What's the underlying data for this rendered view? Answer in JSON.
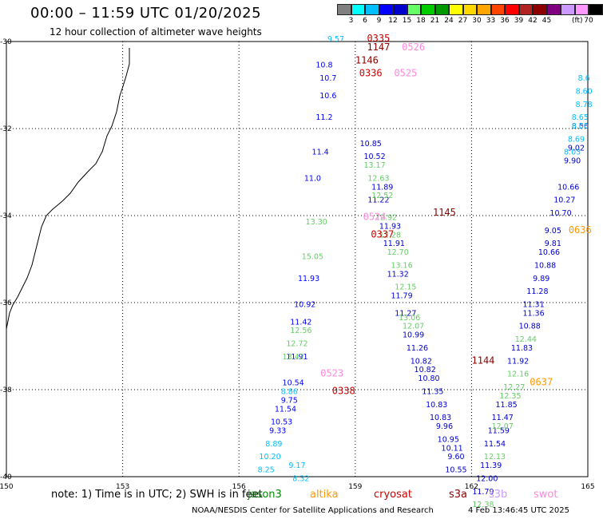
{
  "title": "00:00  –  11:59 UTC 01/20/2025",
  "subtitle": "12 hour collection of altimeter wave heights",
  "legend": {
    "colors": [
      "#808080",
      "#00ffff",
      "#00bfff",
      "#0000ff",
      "#0000cd",
      "#66ff66",
      "#00cc00",
      "#009900",
      "#ffff00",
      "#ffd700",
      "#ffa500",
      "#ff4500",
      "#ff0000",
      "#b22222",
      "#8b0000",
      "#800080",
      "#cc99ff",
      "#ff99ff",
      "#000000"
    ],
    "labels": [
      "3",
      "6",
      "9",
      "12",
      "15",
      "18",
      "21",
      "24",
      "27",
      "30",
      "33",
      "36",
      "39",
      "42",
      "45",
      "70"
    ],
    "unit": "(ft)"
  },
  "axes": {
    "x_ticks": [
      "150",
      "153",
      "156",
      "159",
      "162",
      "165"
    ],
    "y_ticks": [
      "-30",
      "-32",
      "-34",
      "-36",
      "-38",
      "-40"
    ],
    "x_values": [
      150,
      153,
      156,
      159,
      162,
      165
    ],
    "y_values": [
      -30,
      -32,
      -34,
      -36,
      -38,
      -40
    ]
  },
  "tracks": [
    {
      "satellite": "jason3",
      "color": "#0000ff",
      "points": [
        {
          "lon": 158.2,
          "lat": -30.6,
          "v": "10.8"
        },
        {
          "lon": 158.3,
          "lat": -30.9,
          "v": "10.7"
        },
        {
          "lon": 158.3,
          "lat": -31.3,
          "v": "10.6"
        },
        {
          "lon": 158.2,
          "lat": -31.8,
          "v": "11.2"
        },
        {
          "lon": 158.1,
          "lat": -32.6,
          "v": "11.4"
        },
        {
          "lon": 157.9,
          "lat": -33.2,
          "v": "11.0"
        },
        {
          "lon": 157.8,
          "lat": -35.5,
          "v": "11.93"
        },
        {
          "lon": 157.7,
          "lat": -36.1,
          "v": "10.92"
        },
        {
          "lon": 157.6,
          "lat": -36.5,
          "v": "11.42"
        },
        {
          "lon": 157.5,
          "lat": -37.3,
          "v": "11.91"
        },
        {
          "lon": 157.4,
          "lat": -37.9,
          "v": "10.54"
        },
        {
          "lon": 157.3,
          "lat": -38.3,
          "v": "9.75"
        },
        {
          "lon": 157.2,
          "lat": -38.5,
          "v": "11.54"
        },
        {
          "lon": 157.1,
          "lat": -38.8,
          "v": "10.53"
        },
        {
          "lon": 157.0,
          "lat": -39.0,
          "v": "9.33"
        }
      ]
    },
    {
      "satellite": "jason3-b",
      "color": "#0000cd",
      "points": [
        {
          "lon": 159.4,
          "lat": -32.4,
          "v": "10.85"
        },
        {
          "lon": 159.5,
          "lat": -32.7,
          "v": "10.52"
        },
        {
          "lon": 159.7,
          "lat": -33.4,
          "v": "11.89"
        },
        {
          "lon": 159.6,
          "lat": -33.7,
          "v": "11.22"
        },
        {
          "lon": 159.9,
          "lat": -34.3,
          "v": "11.93"
        },
        {
          "lon": 160.0,
          "lat": -34.7,
          "v": "11.91"
        },
        {
          "lon": 160.1,
          "lat": -35.4,
          "v": "11.32"
        },
        {
          "lon": 160.2,
          "lat": -35.9,
          "v": "11.79"
        },
        {
          "lon": 160.3,
          "lat": -36.3,
          "v": "11.27"
        },
        {
          "lon": 160.5,
          "lat": -36.8,
          "v": "10.99"
        },
        {
          "lon": 160.6,
          "lat": -37.1,
          "v": "11.26"
        },
        {
          "lon": 160.7,
          "lat": -37.4,
          "v": "10.82"
        },
        {
          "lon": 160.8,
          "lat": -37.6,
          "v": "10.82"
        },
        {
          "lon": 160.9,
          "lat": -37.8,
          "v": "10.80"
        },
        {
          "lon": 161.0,
          "lat": -38.1,
          "v": "11.35"
        },
        {
          "lon": 161.1,
          "lat": -38.4,
          "v": "10.83"
        },
        {
          "lon": 161.2,
          "lat": -38.7,
          "v": "10.83"
        },
        {
          "lon": 161.3,
          "lat": -38.9,
          "v": "9.96"
        },
        {
          "lon": 161.4,
          "lat": -39.2,
          "v": "10.95"
        },
        {
          "lon": 161.5,
          "lat": -39.4,
          "v": "10.11"
        },
        {
          "lon": 161.6,
          "lat": -39.6,
          "v": "9.60"
        },
        {
          "lon": 161.6,
          "lat": -39.9,
          "v": "10.55"
        }
      ]
    },
    {
      "satellite": "altika",
      "color": "#0000cd",
      "points": [
        {
          "lon": 164.8,
          "lat": -32.0,
          "v": "8.56"
        },
        {
          "lon": 164.7,
          "lat": -32.5,
          "v": "9.02"
        },
        {
          "lon": 164.6,
          "lat": -32.8,
          "v": "9.90"
        },
        {
          "lon": 164.5,
          "lat": -33.4,
          "v": "10.66"
        },
        {
          "lon": 164.4,
          "lat": -33.7,
          "v": "10.27"
        },
        {
          "lon": 164.3,
          "lat": -34.0,
          "v": "10.70"
        },
        {
          "lon": 164.1,
          "lat": -34.4,
          "v": "9.05"
        },
        {
          "lon": 164.1,
          "lat": -34.7,
          "v": "9.81"
        },
        {
          "lon": 164.0,
          "lat": -34.9,
          "v": "10.66"
        },
        {
          "lon": 163.9,
          "lat": -35.2,
          "v": "10.88"
        },
        {
          "lon": 163.8,
          "lat": -35.5,
          "v": "9.89"
        },
        {
          "lon": 163.7,
          "lat": -35.8,
          "v": "11.28"
        },
        {
          "lon": 163.6,
          "lat": -36.1,
          "v": "11.31"
        },
        {
          "lon": 163.6,
          "lat": -36.3,
          "v": "11.36"
        },
        {
          "lon": 163.5,
          "lat": -36.6,
          "v": "10.88"
        },
        {
          "lon": 163.3,
          "lat": -37.1,
          "v": "11.83"
        },
        {
          "lon": 163.2,
          "lat": -37.4,
          "v": "11.92"
        },
        {
          "lon": 162.9,
          "lat": -38.4,
          "v": "11.85"
        },
        {
          "lon": 162.8,
          "lat": -38.7,
          "v": "11.47"
        },
        {
          "lon": 162.7,
          "lat": -39.0,
          "v": "11.59"
        },
        {
          "lon": 162.6,
          "lat": -39.3,
          "v": "11.54"
        },
        {
          "lon": 162.5,
          "lat": -39.8,
          "v": "11.39"
        },
        {
          "lon": 162.4,
          "lat": -40.1,
          "v": "12.00"
        },
        {
          "lon": 162.3,
          "lat": -40.4,
          "v": "11.79"
        }
      ]
    },
    {
      "satellite": "altika-light",
      "color": "#00bfff",
      "points": [
        {
          "lon": 164.9,
          "lat": -31.2,
          "v": "8.60"
        },
        {
          "lon": 164.9,
          "lat": -31.5,
          "v": "8.78"
        },
        {
          "lon": 164.8,
          "lat": -31.8,
          "v": "8.65"
        },
        {
          "lon": 164.8,
          "lat": -32.0,
          "v": "8.00"
        },
        {
          "lon": 164.7,
          "lat": -32.3,
          "v": "8.69"
        },
        {
          "lon": 164.6,
          "lat": -32.6,
          "v": "8.03"
        },
        {
          "lon": 164.9,
          "lat": -30.9,
          "v": "8.6"
        }
      ]
    },
    {
      "satellite": "altika-green",
      "color": "#66cc66",
      "points": [
        {
          "lon": 163.4,
          "lat": -36.9,
          "v": "12.44"
        },
        {
          "lon": 163.2,
          "lat": -37.7,
          "v": "12.16"
        },
        {
          "lon": 163.1,
          "lat": -38.0,
          "v": "12.27"
        },
        {
          "lon": 163.0,
          "lat": -38.2,
          "v": "12.35"
        },
        {
          "lon": 162.8,
          "lat": -38.9,
          "v": "12.07"
        },
        {
          "lon": 162.6,
          "lat": -39.6,
          "v": "12.13"
        },
        {
          "lon": 162.3,
          "lat": -40.7,
          "v": "12.38"
        }
      ]
    },
    {
      "satellite": "jason3-green",
      "color": "#66cc66",
      "points": [
        {
          "lon": 159.5,
          "lat": -32.9,
          "v": "13.17"
        },
        {
          "lon": 159.6,
          "lat": -33.2,
          "v": "12.63"
        },
        {
          "lon": 159.7,
          "lat": -33.6,
          "v": "12.52"
        },
        {
          "lon": 159.8,
          "lat": -34.1,
          "v": "12.92"
        },
        {
          "lon": 159.9,
          "lat": -34.5,
          "v": "12.28"
        },
        {
          "lon": 160.1,
          "lat": -34.9,
          "v": "12.70"
        },
        {
          "lon": 160.2,
          "lat": -35.2,
          "v": "13.16"
        },
        {
          "lon": 160.3,
          "lat": -35.7,
          "v": "12.15"
        },
        {
          "lon": 160.4,
          "lat": -36.4,
          "v": "13.06"
        },
        {
          "lon": 160.5,
          "lat": -36.6,
          "v": "12.07"
        },
        {
          "lon": 158.0,
          "lat": -34.2,
          "v": "13.30"
        },
        {
          "lon": 157.9,
          "lat": -35.0,
          "v": "15.05"
        },
        {
          "lon": 157.6,
          "lat": -36.7,
          "v": "12.56"
        },
        {
          "lon": 157.5,
          "lat": -37.0,
          "v": "12.72"
        },
        {
          "lon": 157.4,
          "lat": -37.3,
          "v": "13.42"
        }
      ]
    },
    {
      "satellite": "cyan-track",
      "color": "#00bfff",
      "points": [
        {
          "lon": 157.3,
          "lat": -38.1,
          "v": "8.86"
        },
        {
          "lon": 156.9,
          "lat": -39.3,
          "v": "8.89"
        },
        {
          "lon": 156.8,
          "lat": -39.6,
          "v": "10.20"
        },
        {
          "lon": 156.7,
          "lat": -39.9,
          "v": "8.25"
        },
        {
          "lon": 157.6,
          "lat": -40.1,
          "v": "8.32"
        },
        {
          "lon": 157.5,
          "lat": -39.8,
          "v": "9.17"
        },
        {
          "lon": 158.5,
          "lat": -30.0,
          "v": "9.57"
        }
      ]
    }
  ],
  "times": [
    {
      "lon": 159.6,
      "lat": -30.0,
      "v": "0335",
      "color": "#cc0000"
    },
    {
      "lon": 159.6,
      "lat": -30.2,
      "v": "1147",
      "color": "#8b0000"
    },
    {
      "lon": 160.5,
      "lat": -30.2,
      "v": "0526",
      "color": "#ff88dd"
    },
    {
      "lon": 159.3,
      "lat": -30.5,
      "v": "1146",
      "color": "#8b0000"
    },
    {
      "lon": 159.4,
      "lat": -30.8,
      "v": "0336",
      "color": "#cc0000"
    },
    {
      "lon": 160.3,
      "lat": -30.8,
      "v": "0525",
      "color": "#ff88dd"
    },
    {
      "lon": 161.3,
      "lat": -34.0,
      "v": "1145",
      "color": "#8b0000"
    },
    {
      "lon": 159.5,
      "lat": -34.1,
      "v": "0524",
      "color": "#ff88dd"
    },
    {
      "lon": 159.7,
      "lat": -34.5,
      "v": "0337",
      "color": "#cc0000"
    },
    {
      "lon": 164.8,
      "lat": -34.4,
      "v": "0636",
      "color": "#ff9900"
    },
    {
      "lon": 162.3,
      "lat": -37.4,
      "v": "1144",
      "color": "#8b0000"
    },
    {
      "lon": 158.4,
      "lat": -37.7,
      "v": "0523",
      "color": "#ff88dd"
    },
    {
      "lon": 163.8,
      "lat": -37.9,
      "v": "0637",
      "color": "#ff9900"
    },
    {
      "lon": 158.7,
      "lat": -38.1,
      "v": "0338",
      "color": "#cc0000"
    }
  ],
  "footer": {
    "note": "note:  1) Time is in UTC; 2) SWH is in feet",
    "credit": "NOAA/NESDIS Center for Satellite Applications and Research",
    "timestamp": "4 Feb 13:46:45 UTC 2025",
    "satellites": [
      {
        "name": "jason3",
        "color": "#008800"
      },
      {
        "name": "altika",
        "color": "#ff9900"
      },
      {
        "name": "cryosat",
        "color": "#cc0000"
      },
      {
        "name": "s3a",
        "color": "#8b0000"
      },
      {
        "name": "s3b",
        "color": "#cc99ff"
      },
      {
        "name": "swot",
        "color": "#ff88dd"
      }
    ]
  }
}
